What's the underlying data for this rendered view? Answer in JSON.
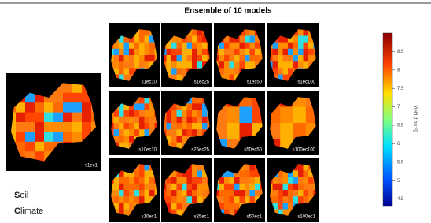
{
  "figure": {
    "title": "Ensemble of 10 models",
    "main_panel": "s1ec1",
    "panels": [
      [
        "s1ec10",
        "s1ec25",
        "s1ec50",
        "s1ec100"
      ],
      [
        "s10ec10",
        "s25ec25",
        "s50ec50",
        "s100ec100"
      ],
      [
        "s10ec1",
        "s25ec1",
        "s50ec1",
        "s100ec1"
      ]
    ],
    "legend": [
      "Soil",
      "Climate"
    ],
    "colorbar": {
      "label": "Yield [t ha⁻¹]",
      "lim": [
        4.3,
        9.0
      ],
      "ticks": [
        8.5,
        8.0,
        7.5,
        7.0,
        6.5,
        6.0,
        5.5,
        5.0,
        4.5
      ]
    }
  }
}
